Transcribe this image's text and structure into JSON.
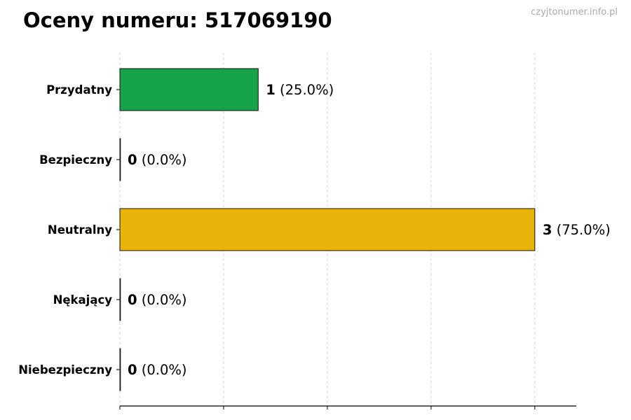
{
  "chart_data": {
    "type": "bar",
    "orientation": "horizontal",
    "title": "Oceny numeru: 517069190",
    "watermark": "czyjtonumer.info.pl",
    "categories": [
      "Przydatny",
      "Bezpieczny",
      "Neutralny",
      "Nękający",
      "Niebezpieczny"
    ],
    "values": [
      1,
      0,
      3,
      0,
      0
    ],
    "percentages": [
      "25.0%",
      "0.0%",
      "75.0%",
      "0.0%",
      "0.0%"
    ],
    "colors": [
      "#17a34a",
      "#16a34a",
      "#eab308",
      "#f97316",
      "#dc2626"
    ],
    "xlim": [
      0,
      3.3
    ],
    "xtick_step": 0.75,
    "xtick_labels_shown": false,
    "grid": "vertical dashed",
    "xlabel": "",
    "ylabel": ""
  }
}
